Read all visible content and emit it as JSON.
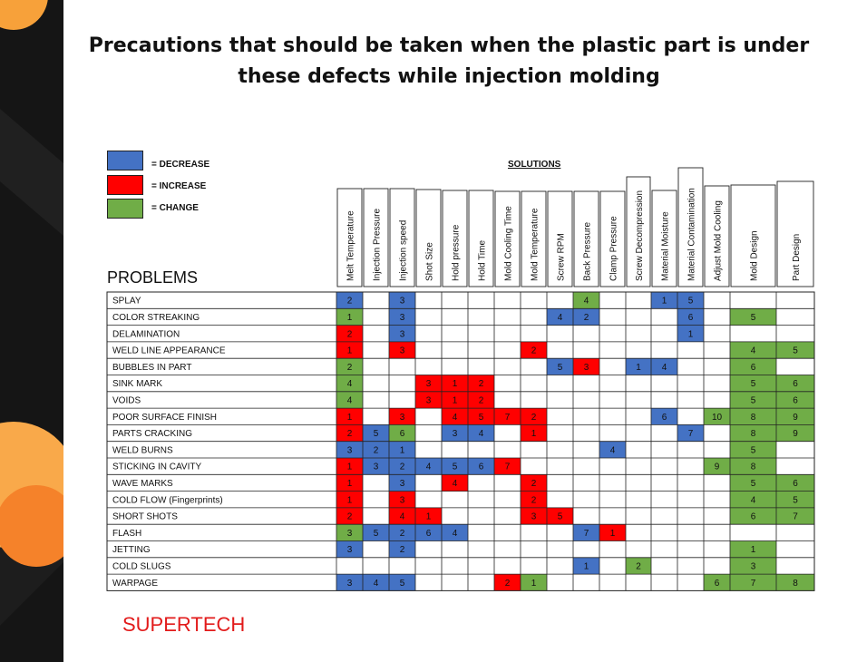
{
  "title_line1": "Precautions that should be taken when the plastic part is under",
  "title_line2": "these defects while injection molding",
  "legend": [
    {
      "color": "#4472C4",
      "label": "= DECREASE"
    },
    {
      "color": "#FF0000",
      "label": "= INCREASE"
    },
    {
      "color": "#70AD47",
      "label": "= CHANGE"
    }
  ],
  "solutions_title": "SOLUTIONS",
  "problems_title": "PROBLEMS",
  "brand": "SUPERTECH",
  "colors": {
    "D": "#4472C4",
    "I": "#FF0000",
    "C": "#70AD47"
  },
  "chart_data": {
    "type": "table",
    "columns": [
      "Melt Temperature",
      "Injection Pressure",
      "Injection speed",
      "Shot Size",
      "Hold pressure",
      "Hold Time",
      "Mold Cooling Time",
      "Mold Temperature",
      "Screw RPM",
      "Back Pressure",
      "Clamp Pressure",
      "Screw Decompression",
      "Material Moisture",
      "Material Contamination",
      "Adjust Mold Cooling",
      "Mold Design",
      "Part Design"
    ],
    "legend_codes": {
      "D": "DECREASE",
      "I": "INCREASE",
      "C": "CHANGE"
    },
    "rows": [
      {
        "problem": "SPLAY",
        "cells": [
          [
            0,
            "D",
            "2"
          ],
          [
            2,
            "D",
            "3"
          ],
          [
            9,
            "C",
            "4"
          ],
          [
            12,
            "D",
            "1"
          ],
          [
            13,
            "D",
            "5"
          ]
        ]
      },
      {
        "problem": "COLOR STREAKING",
        "cells": [
          [
            0,
            "C",
            "1"
          ],
          [
            2,
            "D",
            "3"
          ],
          [
            8,
            "D",
            "4"
          ],
          [
            9,
            "D",
            "2"
          ],
          [
            13,
            "D",
            "6"
          ],
          [
            15,
            "C",
            "5"
          ]
        ]
      },
      {
        "problem": "DELAMINATION",
        "cells": [
          [
            0,
            "I",
            "2"
          ],
          [
            2,
            "D",
            "3"
          ],
          [
            13,
            "D",
            "1"
          ]
        ]
      },
      {
        "problem": "WELD LINE APPEARANCE",
        "cells": [
          [
            0,
            "I",
            "1"
          ],
          [
            2,
            "I",
            "3"
          ],
          [
            7,
            "I",
            "2"
          ],
          [
            15,
            "C",
            "4"
          ],
          [
            16,
            "C",
            "5"
          ]
        ]
      },
      {
        "problem": "BUBBLES IN PART",
        "cells": [
          [
            0,
            "C",
            "2"
          ],
          [
            8,
            "D",
            "5"
          ],
          [
            9,
            "I",
            "3"
          ],
          [
            11,
            "D",
            "1"
          ],
          [
            12,
            "D",
            "4"
          ],
          [
            15,
            "C",
            "6"
          ]
        ]
      },
      {
        "problem": "SINK MARK",
        "cells": [
          [
            0,
            "C",
            "4"
          ],
          [
            3,
            "I",
            "3"
          ],
          [
            4,
            "I",
            "1"
          ],
          [
            5,
            "I",
            "2"
          ],
          [
            15,
            "C",
            "5"
          ],
          [
            16,
            "C",
            "6"
          ]
        ]
      },
      {
        "problem": "VOIDS",
        "cells": [
          [
            0,
            "C",
            "4"
          ],
          [
            3,
            "I",
            "3"
          ],
          [
            4,
            "I",
            "1"
          ],
          [
            5,
            "I",
            "2"
          ],
          [
            15,
            "C",
            "5"
          ],
          [
            16,
            "C",
            "6"
          ]
        ]
      },
      {
        "problem": "POOR SURFACE FINISH",
        "cells": [
          [
            0,
            "I",
            "1"
          ],
          [
            2,
            "I",
            "3"
          ],
          [
            4,
            "I",
            "4"
          ],
          [
            5,
            "I",
            "5"
          ],
          [
            6,
            "I",
            "7"
          ],
          [
            7,
            "I",
            "2"
          ],
          [
            12,
            "D",
            "6"
          ],
          [
            14,
            "C",
            "10"
          ],
          [
            15,
            "C",
            "8"
          ],
          [
            16,
            "C",
            "9"
          ]
        ]
      },
      {
        "problem": "PARTS CRACKING",
        "cells": [
          [
            0,
            "I",
            "2"
          ],
          [
            1,
            "D",
            "5"
          ],
          [
            2,
            "C",
            "6"
          ],
          [
            4,
            "D",
            "3"
          ],
          [
            5,
            "D",
            "4"
          ],
          [
            7,
            "I",
            "1"
          ],
          [
            13,
            "D",
            "7"
          ],
          [
            15,
            "C",
            "8"
          ],
          [
            16,
            "C",
            "9"
          ]
        ]
      },
      {
        "problem": "WELD BURNS",
        "cells": [
          [
            0,
            "D",
            "3"
          ],
          [
            1,
            "D",
            "2"
          ],
          [
            2,
            "D",
            "1"
          ],
          [
            10,
            "D",
            "4"
          ],
          [
            15,
            "C",
            "5"
          ]
        ]
      },
      {
        "problem": "STICKING IN CAVITY",
        "cells": [
          [
            0,
            "I",
            "1"
          ],
          [
            1,
            "D",
            "3"
          ],
          [
            2,
            "D",
            "2"
          ],
          [
            3,
            "D",
            "4"
          ],
          [
            4,
            "D",
            "5"
          ],
          [
            5,
            "D",
            "6"
          ],
          [
            6,
            "I",
            "7"
          ],
          [
            14,
            "C",
            "9"
          ],
          [
            15,
            "C",
            "8"
          ]
        ]
      },
      {
        "problem": "WAVE MARKS",
        "cells": [
          [
            0,
            "I",
            "1"
          ],
          [
            2,
            "D",
            "3"
          ],
          [
            4,
            "I",
            "4"
          ],
          [
            7,
            "I",
            "2"
          ],
          [
            15,
            "C",
            "5"
          ],
          [
            16,
            "C",
            "6"
          ]
        ]
      },
      {
        "problem": "COLD FLOW (Fingerprints)",
        "cells": [
          [
            0,
            "I",
            "1"
          ],
          [
            2,
            "I",
            "3"
          ],
          [
            7,
            "I",
            "2"
          ],
          [
            15,
            "C",
            "4"
          ],
          [
            16,
            "C",
            "5"
          ]
        ]
      },
      {
        "problem": "SHORT SHOTS",
        "cells": [
          [
            0,
            "I",
            "2"
          ],
          [
            2,
            "I",
            "4"
          ],
          [
            3,
            "I",
            "1"
          ],
          [
            7,
            "I",
            "3"
          ],
          [
            8,
            "I",
            "5"
          ],
          [
            15,
            "C",
            "6"
          ],
          [
            16,
            "C",
            "7"
          ]
        ]
      },
      {
        "problem": "FLASH",
        "cells": [
          [
            0,
            "C",
            "3"
          ],
          [
            1,
            "D",
            "5"
          ],
          [
            2,
            "D",
            "2"
          ],
          [
            3,
            "D",
            "6"
          ],
          [
            4,
            "D",
            "4"
          ],
          [
            9,
            "D",
            "7"
          ],
          [
            10,
            "I",
            "1"
          ]
        ]
      },
      {
        "problem": "JETTING",
        "cells": [
          [
            0,
            "D",
            "3"
          ],
          [
            2,
            "D",
            "2"
          ],
          [
            15,
            "C",
            "1"
          ]
        ]
      },
      {
        "problem": "COLD SLUGS",
        "cells": [
          [
            9,
            "D",
            "1"
          ],
          [
            11,
            "C",
            "2"
          ],
          [
            15,
            "C",
            "3"
          ]
        ]
      },
      {
        "problem": "WARPAGE",
        "cells": [
          [
            0,
            "D",
            "3"
          ],
          [
            1,
            "D",
            "4"
          ],
          [
            2,
            "D",
            "5"
          ],
          [
            6,
            "I",
            "2"
          ],
          [
            7,
            "C",
            "1"
          ],
          [
            14,
            "C",
            "6"
          ],
          [
            15,
            "C",
            "7"
          ],
          [
            16,
            "C",
            "8"
          ]
        ]
      }
    ]
  }
}
